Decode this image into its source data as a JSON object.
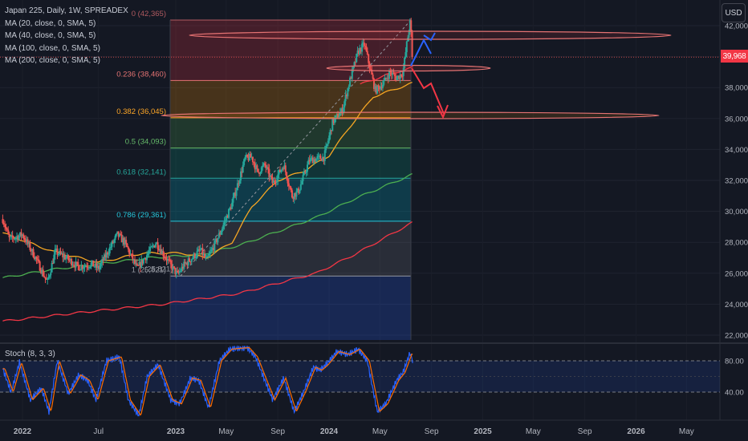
{
  "header": {
    "title": "Japan 225, Daily, 1W, SPREADEX",
    "indicators": [
      "MA (20, close, 0, SMA, 5)",
      "MA (40, close, 0, SMA, 5)",
      "MA (100, close, 0, SMA, 5)",
      "MA (200, close, 0, SMA, 5)"
    ]
  },
  "currency_button": "USD",
  "last_price": "39,968",
  "oscillator": {
    "label": "Stoch (8, 3, 3)",
    "levels": [
      "80.00",
      "40.00"
    ]
  },
  "colors": {
    "background": "#141823",
    "up": "#26a69a",
    "down": "#ef5350",
    "ma20": "#f23645",
    "ma40": "#f5a623",
    "ma100": "#4caf50",
    "ma200": "#f23645",
    "stoch_k": "#2962ff",
    "stoch_d": "#ff6d00"
  },
  "chart_data": {
    "type": "candlestick",
    "y_axis": {
      "ticks": [
        "42,000",
        "40,000",
        "38,000",
        "36,000",
        "34,000",
        "32,000",
        "30,000",
        "28,000",
        "26,000",
        "24,000",
        "22,000"
      ],
      "range": [
        21600,
        42700
      ]
    },
    "x_axis": {
      "ticks": [
        "2022",
        "Jul",
        "2023",
        "May",
        "Sep",
        "2024",
        "May",
        "Sep",
        "2025",
        "May",
        "Sep",
        "2026",
        "May"
      ]
    },
    "fibonacci": [
      {
        "label": "0 (42,365)",
        "value": 42365
      },
      {
        "label": "0.236 (38,460)",
        "value": 38460
      },
      {
        "label": "0.382 (36,045)",
        "value": 36045
      },
      {
        "label": "0.5 (34,093)",
        "value": 34093
      },
      {
        "label": "0.618 (32,141)",
        "value": 32141
      },
      {
        "label": "0.786 (29,361)",
        "value": 29361
      },
      {
        "label": "1 (25,821)",
        "value": 25821
      }
    ],
    "swing_low_label": "(25,821)",
    "last_price_value": 39968,
    "stoch_levels": [
      80,
      40
    ],
    "stoch_range": [
      0,
      100
    ],
    "price_anchors": [
      [
        "2021-11-15",
        29500
      ],
      [
        "2021-12-01",
        28200
      ],
      [
        "2022-01-01",
        28500
      ],
      [
        "2022-02-01",
        27000
      ],
      [
        "2022-03-01",
        25400
      ],
      [
        "2022-03-20",
        27400
      ],
      [
        "2022-04-15",
        27000
      ],
      [
        "2022-05-15",
        26400
      ],
      [
        "2022-06-15",
        26600
      ],
      [
        "2022-07-01",
        26300
      ],
      [
        "2022-08-15",
        28500
      ],
      [
        "2022-09-01",
        28000
      ],
      [
        "2022-10-01",
        26300
      ],
      [
        "2022-11-15",
        28000
      ],
      [
        "2022-12-20",
        26500
      ],
      [
        "2023-01-05",
        25900
      ],
      [
        "2023-01-20",
        26500
      ],
      [
        "2023-03-01",
        27500
      ],
      [
        "2023-03-15",
        26800
      ],
      [
        "2023-04-15",
        28500
      ],
      [
        "2023-05-15",
        30500
      ],
      [
        "2023-06-15",
        33400
      ],
      [
        "2023-07-01",
        33500
      ],
      [
        "2023-07-15",
        32500
      ],
      [
        "2023-08-01",
        33000
      ],
      [
        "2023-08-20",
        31800
      ],
      [
        "2023-09-15",
        33000
      ],
      [
        "2023-10-05",
        31000
      ],
      [
        "2023-10-20",
        31300
      ],
      [
        "2023-11-15",
        33300
      ],
      [
        "2023-12-20",
        33500
      ],
      [
        "2024-01-10",
        35800
      ],
      [
        "2024-02-01",
        36500
      ],
      [
        "2024-02-20",
        38500
      ],
      [
        "2024-03-10",
        40300
      ],
      [
        "2024-03-25",
        40800
      ],
      [
        "2024-04-01",
        40000
      ],
      [
        "2024-04-20",
        37800
      ],
      [
        "2024-05-10",
        38300
      ],
      [
        "2024-05-25",
        39000
      ],
      [
        "2024-06-10",
        38600
      ],
      [
        "2024-06-25",
        39000
      ],
      [
        "2024-07-05",
        41000
      ],
      [
        "2024-07-12",
        42200
      ],
      [
        "2024-07-19",
        39968
      ]
    ],
    "stoch_anchors": [
      [
        "2021-11-15",
        70
      ],
      [
        "2021-12-05",
        40
      ],
      [
        "2021-12-25",
        78
      ],
      [
        "2022-01-20",
        30
      ],
      [
        "2022-02-15",
        45
      ],
      [
        "2022-03-05",
        15
      ],
      [
        "2022-03-25",
        80
      ],
      [
        "2022-04-20",
        38
      ],
      [
        "2022-05-15",
        62
      ],
      [
        "2022-06-05",
        55
      ],
      [
        "2022-06-25",
        30
      ],
      [
        "2022-07-20",
        80
      ],
      [
        "2022-08-20",
        85
      ],
      [
        "2022-09-10",
        30
      ],
      [
        "2022-10-05",
        10
      ],
      [
        "2022-10-25",
        60
      ],
      [
        "2022-11-20",
        75
      ],
      [
        "2022-12-20",
        30
      ],
      [
        "2023-01-10",
        25
      ],
      [
        "2023-02-05",
        58
      ],
      [
        "2023-02-25",
        55
      ],
      [
        "2023-03-20",
        20
      ],
      [
        "2023-04-15",
        80
      ],
      [
        "2023-05-10",
        95
      ],
      [
        "2023-06-20",
        97
      ],
      [
        "2023-07-10",
        85
      ],
      [
        "2023-08-01",
        55
      ],
      [
        "2023-08-20",
        30
      ],
      [
        "2023-09-15",
        58
      ],
      [
        "2023-10-10",
        15
      ],
      [
        "2023-11-01",
        40
      ],
      [
        "2023-11-25",
        72
      ],
      [
        "2023-12-10",
        68
      ],
      [
        "2023-12-25",
        75
      ],
      [
        "2024-01-20",
        92
      ],
      [
        "2024-02-15",
        88
      ],
      [
        "2024-03-10",
        95
      ],
      [
        "2024-04-01",
        80
      ],
      [
        "2024-04-25",
        15
      ],
      [
        "2024-05-15",
        25
      ],
      [
        "2024-06-10",
        55
      ],
      [
        "2024-06-25",
        65
      ],
      [
        "2024-07-12",
        90
      ],
      [
        "2024-07-19",
        78
      ]
    ],
    "ma_anchors": {
      "ma20": [
        [
          "2024-03-15",
          38200
        ],
        [
          "2024-05-15",
          38800
        ],
        [
          "2024-07-19",
          39300
        ]
      ],
      "ma40": [
        [
          "2021-11-15",
          28600
        ],
        [
          "2022-03-15",
          27400
        ],
        [
          "2022-07-01",
          26700
        ],
        [
          "2022-10-15",
          27300
        ],
        [
          "2023-01-15",
          27300
        ],
        [
          "2023-03-15",
          27000
        ],
        [
          "2023-05-15",
          28000
        ],
        [
          "2023-07-01",
          30300
        ],
        [
          "2023-09-01",
          32000
        ],
        [
          "2023-11-01",
          32600
        ],
        [
          "2024-01-01",
          33600
        ],
        [
          "2024-02-15",
          35300
        ],
        [
          "2024-04-15",
          37400
        ],
        [
          "2024-07-19",
          38300
        ]
      ],
      "ma100": [
        [
          "2021-11-15",
          25700
        ],
        [
          "2022-03-01",
          26200
        ],
        [
          "2022-07-01",
          26600
        ],
        [
          "2022-11-01",
          27000
        ],
        [
          "2023-03-01",
          27200
        ],
        [
          "2023-06-01",
          27800
        ],
        [
          "2023-09-01",
          28700
        ],
        [
          "2023-12-01",
          29600
        ],
        [
          "2024-03-01",
          30800
        ],
        [
          "2024-07-19",
          32400
        ]
      ],
      "ma200": [
        [
          "2021-11-15",
          22900
        ],
        [
          "2022-06-01",
          23500
        ],
        [
          "2022-12-01",
          24000
        ],
        [
          "2023-06-01",
          24700
        ],
        [
          "2023-12-01",
          26000
        ],
        [
          "2024-03-01",
          27200
        ],
        [
          "2024-07-19",
          29300
        ]
      ]
    }
  }
}
